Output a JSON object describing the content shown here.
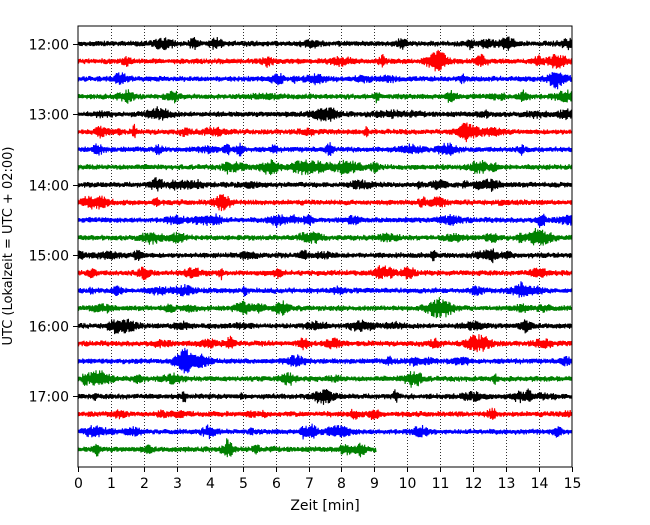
{
  "chart_data": {
    "type": "line",
    "title": "",
    "xlabel": "Zeit  [min]",
    "ylabel": "UTC (Lokalzeit = UTC + 02:00)",
    "xlim": [
      0,
      15
    ],
    "x_ticks": [
      0,
      1,
      2,
      3,
      4,
      5,
      6,
      7,
      8,
      9,
      10,
      11,
      12,
      13,
      14,
      15
    ],
    "x_tick_labels": [
      "0",
      "1",
      "2",
      "3",
      "4",
      "5",
      "6",
      "7",
      "8",
      "9",
      "10",
      "11",
      "12",
      "13",
      "14",
      "15"
    ],
    "y_time_range": [
      "11:45",
      "18:00"
    ],
    "y_ticks": [
      "12:00",
      "13:00",
      "14:00",
      "15:00",
      "16:00",
      "17:00"
    ],
    "grid_x": true,
    "trace_interval_minutes": 15,
    "trace_colors": [
      "#000000",
      "#ff0000",
      "#0000ff",
      "#008000"
    ],
    "series": [
      {
        "start": "12:00",
        "color": "#000000",
        "x_end": 15
      },
      {
        "start": "12:15",
        "color": "#ff0000",
        "x_end": 15
      },
      {
        "start": "12:30",
        "color": "#0000ff",
        "x_end": 15
      },
      {
        "start": "12:45",
        "color": "#008000",
        "x_end": 15
      },
      {
        "start": "13:00",
        "color": "#000000",
        "x_end": 15
      },
      {
        "start": "13:15",
        "color": "#ff0000",
        "x_end": 15
      },
      {
        "start": "13:30",
        "color": "#0000ff",
        "x_end": 15
      },
      {
        "start": "13:45",
        "color": "#008000",
        "x_end": 15
      },
      {
        "start": "14:00",
        "color": "#000000",
        "x_end": 15
      },
      {
        "start": "14:15",
        "color": "#ff0000",
        "x_end": 15
      },
      {
        "start": "14:30",
        "color": "#0000ff",
        "x_end": 15
      },
      {
        "start": "14:45",
        "color": "#008000",
        "x_end": 15
      },
      {
        "start": "15:00",
        "color": "#000000",
        "x_end": 15
      },
      {
        "start": "15:15",
        "color": "#ff0000",
        "x_end": 15
      },
      {
        "start": "15:30",
        "color": "#0000ff",
        "x_end": 15
      },
      {
        "start": "15:45",
        "color": "#008000",
        "x_end": 15
      },
      {
        "start": "16:00",
        "color": "#000000",
        "x_end": 15
      },
      {
        "start": "16:15",
        "color": "#ff0000",
        "x_end": 15
      },
      {
        "start": "16:30",
        "color": "#0000ff",
        "x_end": 15
      },
      {
        "start": "16:45",
        "color": "#008000",
        "x_end": 15
      },
      {
        "start": "17:00",
        "color": "#000000",
        "x_end": 15
      },
      {
        "start": "17:15",
        "color": "#ff0000",
        "x_end": 15
      },
      {
        "start": "17:30",
        "color": "#0000ff",
        "x_end": 15
      },
      {
        "start": "17:45",
        "color": "#008000",
        "x_end": 9.05
      }
    ],
    "legend": "none"
  }
}
